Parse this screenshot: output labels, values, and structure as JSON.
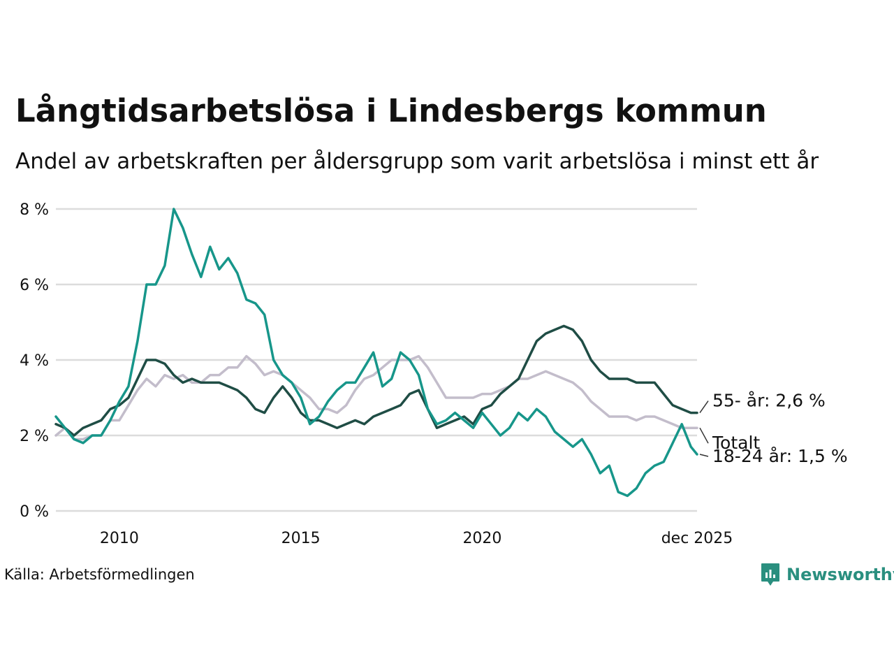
{
  "title": "Långtidsarbetslösa i Lindesbergs kommun",
  "subtitle": "Andel av arbetskraften per åldersgrupp som varit arbetslösa i minst ett år",
  "source": "Källa: Arbetsförmedlingen",
  "brand": {
    "name": "Newsworthy",
    "icon": "newsworthy-logo-icon"
  },
  "colors": {
    "age55": "#1f4d45",
    "total": "#c3bdcb",
    "age18_24": "#17968a",
    "grid": "#dcdcdc"
  },
  "chart_data": {
    "type": "line",
    "title": "Långtidsarbetslösa i Lindesbergs kommun",
    "xlabel": "",
    "ylabel": "",
    "xlim": [
      2008.25,
      2025.92
    ],
    "ylim": [
      0,
      8
    ],
    "y_ticks": [
      0,
      2,
      4,
      6,
      8
    ],
    "y_tick_labels": [
      "0 %",
      "2 %",
      "4 %",
      "6 %",
      "8 %"
    ],
    "x_ticks": [
      2010,
      2015,
      2020,
      2025.92
    ],
    "x_tick_labels": [
      "2010",
      "2015",
      "2020",
      "dec 2025"
    ],
    "grid": true,
    "series": [
      {
        "key": "total",
        "name": "Totalt",
        "end_label": "Totalt",
        "points": [
          [
            2008.25,
            2.0
          ],
          [
            2008.5,
            2.2
          ],
          [
            2008.75,
            1.9
          ],
          [
            2009.0,
            1.9
          ],
          [
            2009.25,
            2.0
          ],
          [
            2009.5,
            2.0
          ],
          [
            2009.75,
            2.4
          ],
          [
            2010.0,
            2.4
          ],
          [
            2010.25,
            2.8
          ],
          [
            2010.5,
            3.2
          ],
          [
            2010.75,
            3.5
          ],
          [
            2011.0,
            3.3
          ],
          [
            2011.25,
            3.6
          ],
          [
            2011.5,
            3.5
          ],
          [
            2011.75,
            3.6
          ],
          [
            2012.0,
            3.4
          ],
          [
            2012.25,
            3.4
          ],
          [
            2012.5,
            3.6
          ],
          [
            2012.75,
            3.6
          ],
          [
            2013.0,
            3.8
          ],
          [
            2013.25,
            3.8
          ],
          [
            2013.5,
            4.1
          ],
          [
            2013.75,
            3.9
          ],
          [
            2014.0,
            3.6
          ],
          [
            2014.25,
            3.7
          ],
          [
            2014.5,
            3.6
          ],
          [
            2014.75,
            3.4
          ],
          [
            2015.0,
            3.2
          ],
          [
            2015.25,
            3.0
          ],
          [
            2015.5,
            2.7
          ],
          [
            2015.75,
            2.7
          ],
          [
            2016.0,
            2.6
          ],
          [
            2016.25,
            2.8
          ],
          [
            2016.5,
            3.2
          ],
          [
            2016.75,
            3.5
          ],
          [
            2017.0,
            3.6
          ],
          [
            2017.25,
            3.8
          ],
          [
            2017.5,
            4.0
          ],
          [
            2017.75,
            4.0
          ],
          [
            2018.0,
            4.0
          ],
          [
            2018.25,
            4.1
          ],
          [
            2018.5,
            3.8
          ],
          [
            2018.75,
            3.4
          ],
          [
            2019.0,
            3.0
          ],
          [
            2019.25,
            3.0
          ],
          [
            2019.5,
            3.0
          ],
          [
            2019.75,
            3.0
          ],
          [
            2020.0,
            3.1
          ],
          [
            2020.25,
            3.1
          ],
          [
            2020.5,
            3.2
          ],
          [
            2020.75,
            3.3
          ],
          [
            2021.0,
            3.5
          ],
          [
            2021.25,
            3.5
          ],
          [
            2021.5,
            3.6
          ],
          [
            2021.75,
            3.7
          ],
          [
            2022.0,
            3.6
          ],
          [
            2022.25,
            3.5
          ],
          [
            2022.5,
            3.4
          ],
          [
            2022.75,
            3.2
          ],
          [
            2023.0,
            2.9
          ],
          [
            2023.25,
            2.7
          ],
          [
            2023.5,
            2.5
          ],
          [
            2023.75,
            2.5
          ],
          [
            2024.0,
            2.5
          ],
          [
            2024.25,
            2.4
          ],
          [
            2024.5,
            2.5
          ],
          [
            2024.75,
            2.5
          ],
          [
            2025.0,
            2.4
          ],
          [
            2025.25,
            2.3
          ],
          [
            2025.5,
            2.2
          ],
          [
            2025.75,
            2.2
          ],
          [
            2025.92,
            2.2
          ]
        ]
      },
      {
        "key": "age55",
        "name": "55- år",
        "end_label": "55- år: 2,6 %",
        "points": [
          [
            2008.25,
            2.3
          ],
          [
            2008.5,
            2.2
          ],
          [
            2008.75,
            2.0
          ],
          [
            2009.0,
            2.2
          ],
          [
            2009.25,
            2.3
          ],
          [
            2009.5,
            2.4
          ],
          [
            2009.75,
            2.7
          ],
          [
            2010.0,
            2.8
          ],
          [
            2010.25,
            3.0
          ],
          [
            2010.5,
            3.5
          ],
          [
            2010.75,
            4.0
          ],
          [
            2011.0,
            4.0
          ],
          [
            2011.25,
            3.9
          ],
          [
            2011.5,
            3.6
          ],
          [
            2011.75,
            3.4
          ],
          [
            2012.0,
            3.5
          ],
          [
            2012.25,
            3.4
          ],
          [
            2012.5,
            3.4
          ],
          [
            2012.75,
            3.4
          ],
          [
            2013.0,
            3.3
          ],
          [
            2013.25,
            3.2
          ],
          [
            2013.5,
            3.0
          ],
          [
            2013.75,
            2.7
          ],
          [
            2014.0,
            2.6
          ],
          [
            2014.25,
            3.0
          ],
          [
            2014.5,
            3.3
          ],
          [
            2014.75,
            3.0
          ],
          [
            2015.0,
            2.6
          ],
          [
            2015.25,
            2.4
          ],
          [
            2015.5,
            2.4
          ],
          [
            2015.75,
            2.3
          ],
          [
            2016.0,
            2.2
          ],
          [
            2016.25,
            2.3
          ],
          [
            2016.5,
            2.4
          ],
          [
            2016.75,
            2.3
          ],
          [
            2017.0,
            2.5
          ],
          [
            2017.25,
            2.6
          ],
          [
            2017.5,
            2.7
          ],
          [
            2017.75,
            2.8
          ],
          [
            2018.0,
            3.1
          ],
          [
            2018.25,
            3.2
          ],
          [
            2018.5,
            2.7
          ],
          [
            2018.75,
            2.2
          ],
          [
            2019.0,
            2.3
          ],
          [
            2019.25,
            2.4
          ],
          [
            2019.5,
            2.5
          ],
          [
            2019.75,
            2.3
          ],
          [
            2020.0,
            2.7
          ],
          [
            2020.25,
            2.8
          ],
          [
            2020.5,
            3.1
          ],
          [
            2020.75,
            3.3
          ],
          [
            2021.0,
            3.5
          ],
          [
            2021.25,
            4.0
          ],
          [
            2021.5,
            4.5
          ],
          [
            2021.75,
            4.7
          ],
          [
            2022.0,
            4.8
          ],
          [
            2022.25,
            4.9
          ],
          [
            2022.5,
            4.8
          ],
          [
            2022.75,
            4.5
          ],
          [
            2023.0,
            4.0
          ],
          [
            2023.25,
            3.7
          ],
          [
            2023.5,
            3.5
          ],
          [
            2023.75,
            3.5
          ],
          [
            2024.0,
            3.5
          ],
          [
            2024.25,
            3.4
          ],
          [
            2024.5,
            3.4
          ],
          [
            2024.75,
            3.4
          ],
          [
            2025.0,
            3.1
          ],
          [
            2025.25,
            2.8
          ],
          [
            2025.5,
            2.7
          ],
          [
            2025.75,
            2.6
          ],
          [
            2025.92,
            2.6
          ]
        ]
      },
      {
        "key": "age18_24",
        "name": "18-24 år",
        "end_label": "18-24 år: 1,5 %",
        "points": [
          [
            2008.25,
            2.5
          ],
          [
            2008.5,
            2.2
          ],
          [
            2008.75,
            1.9
          ],
          [
            2009.0,
            1.8
          ],
          [
            2009.25,
            2.0
          ],
          [
            2009.5,
            2.0
          ],
          [
            2009.75,
            2.4
          ],
          [
            2010.0,
            2.9
          ],
          [
            2010.25,
            3.3
          ],
          [
            2010.5,
            4.5
          ],
          [
            2010.75,
            6.0
          ],
          [
            2011.0,
            6.0
          ],
          [
            2011.25,
            6.5
          ],
          [
            2011.5,
            8.0
          ],
          [
            2011.75,
            7.5
          ],
          [
            2012.0,
            6.8
          ],
          [
            2012.25,
            6.2
          ],
          [
            2012.5,
            7.0
          ],
          [
            2012.75,
            6.4
          ],
          [
            2013.0,
            6.7
          ],
          [
            2013.25,
            6.3
          ],
          [
            2013.5,
            5.6
          ],
          [
            2013.75,
            5.5
          ],
          [
            2014.0,
            5.2
          ],
          [
            2014.25,
            4.0
          ],
          [
            2014.5,
            3.6
          ],
          [
            2014.75,
            3.4
          ],
          [
            2015.0,
            3.0
          ],
          [
            2015.25,
            2.3
          ],
          [
            2015.5,
            2.5
          ],
          [
            2015.75,
            2.9
          ],
          [
            2016.0,
            3.2
          ],
          [
            2016.25,
            3.4
          ],
          [
            2016.5,
            3.4
          ],
          [
            2016.75,
            3.8
          ],
          [
            2017.0,
            4.2
          ],
          [
            2017.25,
            3.3
          ],
          [
            2017.5,
            3.5
          ],
          [
            2017.75,
            4.2
          ],
          [
            2018.0,
            4.0
          ],
          [
            2018.25,
            3.6
          ],
          [
            2018.5,
            2.7
          ],
          [
            2018.75,
            2.3
          ],
          [
            2019.0,
            2.4
          ],
          [
            2019.25,
            2.6
          ],
          [
            2019.5,
            2.4
          ],
          [
            2019.75,
            2.2
          ],
          [
            2020.0,
            2.6
          ],
          [
            2020.25,
            2.3
          ],
          [
            2020.5,
            2.0
          ],
          [
            2020.75,
            2.2
          ],
          [
            2021.0,
            2.6
          ],
          [
            2021.25,
            2.4
          ],
          [
            2021.5,
            2.7
          ],
          [
            2021.75,
            2.5
          ],
          [
            2022.0,
            2.1
          ],
          [
            2022.25,
            1.9
          ],
          [
            2022.5,
            1.7
          ],
          [
            2022.75,
            1.9
          ],
          [
            2023.0,
            1.5
          ],
          [
            2023.25,
            1.0
          ],
          [
            2023.5,
            1.2
          ],
          [
            2023.75,
            0.5
          ],
          [
            2024.0,
            0.4
          ],
          [
            2024.25,
            0.6
          ],
          [
            2024.5,
            1.0
          ],
          [
            2024.75,
            1.2
          ],
          [
            2025.0,
            1.3
          ],
          [
            2025.25,
            1.8
          ],
          [
            2025.5,
            2.3
          ],
          [
            2025.75,
            1.7
          ],
          [
            2025.92,
            1.5
          ]
        ]
      }
    ]
  }
}
